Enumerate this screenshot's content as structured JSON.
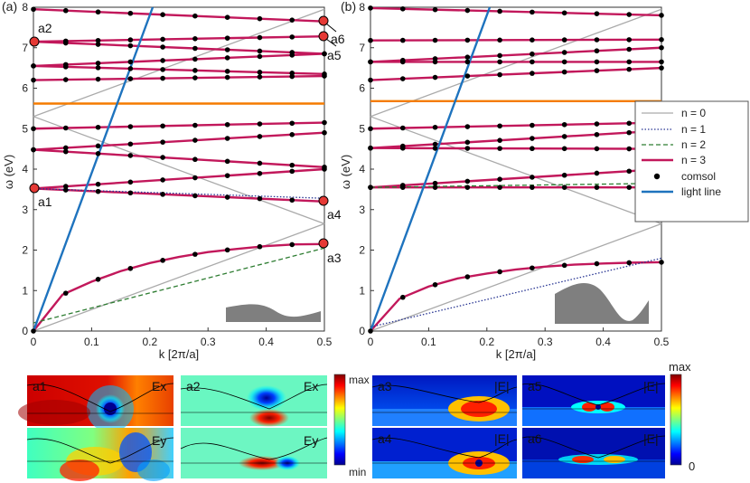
{
  "chart_data": [
    {
      "type": "line",
      "panel_label": "(a)",
      "xlabel": "k [2π/a]",
      "ylabel": "ω (eV)",
      "xlim": [
        0,
        0.5
      ],
      "ylim": [
        0,
        8
      ],
      "xticks": [
        "0",
        "0.1",
        "0.2",
        "0.3",
        "0.4",
        "0.5"
      ],
      "yticks": [
        "0",
        "1",
        "2",
        "3",
        "4",
        "5",
        "6",
        "7",
        "8"
      ],
      "series": [
        {
          "name": "n = 0",
          "color": "#aaaaaa",
          "x": [
            0,
            0.5
          ],
          "y": [
            0,
            2.65
          ]
        },
        {
          "name": "n = 0",
          "color": "#aaaaaa",
          "x": [
            0,
            0.5
          ],
          "y": [
            5.3,
            2.65
          ]
        },
        {
          "name": "n = 0",
          "color": "#aaaaaa",
          "x": [
            0,
            0.5
          ],
          "y": [
            5.3,
            7.95
          ]
        },
        {
          "name": "n = 3",
          "color": "#c2185b",
          "x": [
            0,
            0.05,
            0.1,
            0.15,
            0.2,
            0.25,
            0.3,
            0.35,
            0.4,
            0.45,
            0.5
          ],
          "y": [
            0,
            0.9,
            1.22,
            1.48,
            1.68,
            1.83,
            1.95,
            2.03,
            2.1,
            2.14,
            2.15
          ]
        },
        {
          "name": "n = 3",
          "color": "#c2185b",
          "x": [
            0,
            0.5
          ],
          "y": [
            3.52,
            3.2
          ]
        },
        {
          "name": "n = 3",
          "color": "#c2185b",
          "x": [
            0,
            0.5
          ],
          "y": [
            3.52,
            4.0
          ]
        },
        {
          "name": "n = 3",
          "color": "#c2185b",
          "x": [
            0,
            0.5
          ],
          "y": [
            4.48,
            4.05
          ]
        },
        {
          "name": "n = 3",
          "color": "#c2185b",
          "x": [
            0,
            0.5
          ],
          "y": [
            4.48,
            4.9
          ]
        },
        {
          "name": "n = 3",
          "color": "#c2185b",
          "x": [
            0,
            0.5
          ],
          "y": [
            5.0,
            5.15
          ]
        },
        {
          "name": "n = 3",
          "color": "#c2185b",
          "x": [
            0,
            0.5
          ],
          "y": [
            6.2,
            6.3
          ]
        },
        {
          "name": "n = 3",
          "color": "#c2185b",
          "x": [
            0,
            0.5
          ],
          "y": [
            6.55,
            6.35
          ]
        },
        {
          "name": "n = 3",
          "color": "#c2185b",
          "x": [
            0,
            0.5
          ],
          "y": [
            6.55,
            6.85
          ]
        },
        {
          "name": "n = 3",
          "color": "#c2185b",
          "x": [
            0,
            0.5
          ],
          "y": [
            7.15,
            6.85
          ]
        },
        {
          "name": "n = 3",
          "color": "#c2185b",
          "x": [
            0,
            0.5
          ],
          "y": [
            7.15,
            7.28
          ]
        },
        {
          "name": "n = 3",
          "color": "#c2185b",
          "x": [
            0,
            0.5
          ],
          "y": [
            7.95,
            7.65
          ]
        },
        {
          "name": "n = 2",
          "color": "#2e7d32",
          "x": [
            0,
            0.5
          ],
          "y": [
            0.2,
            2.05
          ]
        },
        {
          "name": "n = 1",
          "color": "#283593",
          "x": [
            0,
            0.5
          ],
          "y": [
            3.52,
            3.28
          ]
        },
        {
          "name": "horizontal",
          "color": "#f57c00",
          "x": [
            0,
            0.5
          ],
          "y": [
            5.62,
            5.62
          ]
        },
        {
          "name": "light line",
          "color": "#1e73be",
          "x": [
            0,
            0.205
          ],
          "y": [
            0,
            8
          ]
        }
      ],
      "annotations": [
        "a1",
        "a2",
        "a3",
        "a4",
        "a5",
        "a6"
      ]
    },
    {
      "type": "line",
      "panel_label": "(b)",
      "xlabel": "k [2π/a]",
      "ylabel": "ω (eV)",
      "xlim": [
        0,
        0.5
      ],
      "ylim": [
        0,
        8
      ],
      "xticks": [
        "0",
        "0.1",
        "0.2",
        "0.3",
        "0.4",
        "0.5"
      ],
      "yticks": [
        "0",
        "1",
        "2",
        "3",
        "4",
        "5",
        "6",
        "7",
        "8"
      ],
      "series": [
        {
          "name": "n = 0",
          "color": "#aaaaaa",
          "x": [
            0,
            0.5
          ],
          "y": [
            0,
            2.65
          ]
        },
        {
          "name": "n = 0",
          "color": "#aaaaaa",
          "x": [
            0,
            0.5
          ],
          "y": [
            5.3,
            2.65
          ]
        },
        {
          "name": "n = 0",
          "color": "#aaaaaa",
          "x": [
            0,
            0.5
          ],
          "y": [
            5.3,
            7.95
          ]
        },
        {
          "name": "n = 3",
          "color": "#c2185b",
          "x": [
            0,
            0.05,
            0.1,
            0.15,
            0.2,
            0.25,
            0.3,
            0.35,
            0.4,
            0.45,
            0.5
          ],
          "y": [
            0,
            0.8,
            1.1,
            1.3,
            1.42,
            1.52,
            1.59,
            1.64,
            1.67,
            1.69,
            1.7
          ]
        },
        {
          "name": "n = 3",
          "color": "#c2185b",
          "x": [
            0,
            0.5
          ],
          "y": [
            3.55,
            3.55
          ]
        },
        {
          "name": "n = 3",
          "color": "#c2185b",
          "x": [
            0,
            0.5
          ],
          "y": [
            3.55,
            4.0
          ]
        },
        {
          "name": "n = 3",
          "color": "#c2185b",
          "x": [
            0,
            0.5
          ],
          "y": [
            4.52,
            4.5
          ]
        },
        {
          "name": "n = 3",
          "color": "#c2185b",
          "x": [
            0,
            0.5
          ],
          "y": [
            4.52,
            4.95
          ]
        },
        {
          "name": "n = 3",
          "color": "#c2185b",
          "x": [
            0,
            0.5
          ],
          "y": [
            5.0,
            5.15
          ]
        },
        {
          "name": "n = 3",
          "color": "#c2185b",
          "x": [
            0,
            0.5
          ],
          "y": [
            6.2,
            6.5
          ]
        },
        {
          "name": "n = 3",
          "color": "#c2185b",
          "x": [
            0,
            0.5
          ],
          "y": [
            6.65,
            6.65
          ]
        },
        {
          "name": "n = 3",
          "color": "#c2185b",
          "x": [
            0,
            0.5
          ],
          "y": [
            6.65,
            7.0
          ]
        },
        {
          "name": "n = 3",
          "color": "#c2185b",
          "x": [
            0,
            0.5
          ],
          "y": [
            7.18,
            7.2
          ]
        },
        {
          "name": "n = 3",
          "color": "#c2185b",
          "x": [
            0,
            0.5
          ],
          "y": [
            7.98,
            7.8
          ]
        },
        {
          "name": "n = 1",
          "color": "#283593",
          "x": [
            0,
            0.5
          ],
          "y": [
            0.1,
            1.8
          ]
        },
        {
          "name": "n = 2",
          "color": "#2e7d32",
          "x": [
            0,
            0.5
          ],
          "y": [
            3.55,
            3.65
          ]
        },
        {
          "name": "horizontal",
          "color": "#f57c00",
          "x": [
            0,
            0.5
          ],
          "y": [
            5.68,
            5.68
          ]
        },
        {
          "name": "light line",
          "color": "#1e73be",
          "x": [
            0,
            0.205
          ],
          "y": [
            0,
            8
          ]
        }
      ],
      "legend": [
        "n = 0",
        "n = 1",
        "n = 2",
        "n = 3",
        "comsol",
        "light line"
      ]
    }
  ],
  "field_maps": {
    "a1": {
      "label": "a1",
      "component": "Ex"
    },
    "a1y": {
      "component": "Ey"
    },
    "a2": {
      "label": "a2",
      "component": "Ex"
    },
    "a2y": {
      "component": "Ey"
    },
    "a3": {
      "label": "a3",
      "component": "|E|"
    },
    "a4": {
      "label": "a4",
      "component": "|E|"
    },
    "a5": {
      "label": "a5",
      "component": "|E|"
    },
    "a6": {
      "label": "a6",
      "component": "|E|"
    }
  },
  "colorbar_left": {
    "max": "max",
    "min": "min"
  },
  "colorbar_right": {
    "max": "max",
    "min": "0"
  }
}
